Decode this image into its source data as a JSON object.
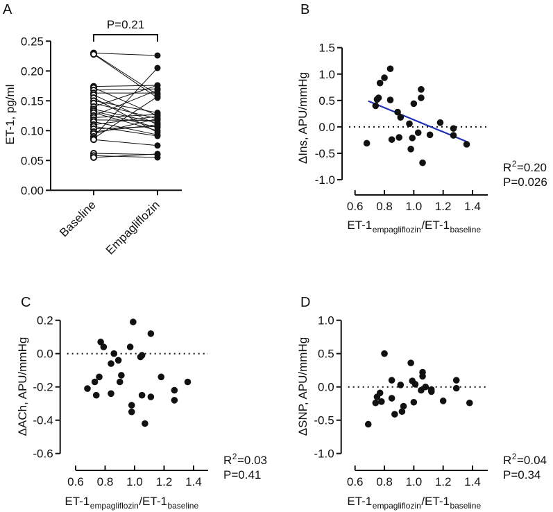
{
  "chart_data": [
    {
      "panel": "A",
      "type": "scatter",
      "subtype": "paired",
      "ylabel": "ET-1, pg/ml",
      "categories": [
        "Baseline",
        "Empagliflozin"
      ],
      "ylim": [
        0,
        0.25
      ],
      "yticks": [
        "0.00",
        "0.05",
        "0.10",
        "0.15",
        "0.20",
        "0.25"
      ],
      "annotation": "P=0.21",
      "pairs": [
        [
          0.23,
          0.226
        ],
        [
          0.229,
          0.16
        ],
        [
          0.228,
          0.155
        ],
        [
          0.174,
          0.176
        ],
        [
          0.172,
          0.125
        ],
        [
          0.168,
          0.17
        ],
        [
          0.163,
          0.163
        ],
        [
          0.16,
          0.11
        ],
        [
          0.155,
          0.097
        ],
        [
          0.15,
          0.13
        ],
        [
          0.146,
          0.12
        ],
        [
          0.14,
          0.176
        ],
        [
          0.136,
          0.113
        ],
        [
          0.133,
          0.105
        ],
        [
          0.13,
          0.1
        ],
        [
          0.125,
          0.168
        ],
        [
          0.122,
          0.127
        ],
        [
          0.118,
          0.117
        ],
        [
          0.115,
          0.093
        ],
        [
          0.11,
          0.124
        ],
        [
          0.107,
          0.091
        ],
        [
          0.103,
          0.107
        ],
        [
          0.098,
          0.11
        ],
        [
          0.095,
          0.12
        ],
        [
          0.09,
          0.205
        ],
        [
          0.087,
          0.157
        ],
        [
          0.085,
          0.075
        ],
        [
          0.062,
          0.06
        ],
        [
          0.058,
          0.055
        ],
        [
          0.055,
          0.061
        ]
      ]
    },
    {
      "panel": "B",
      "type": "scatter",
      "ylabel": "ΔIns, APU/mmHg",
      "xlabel": {
        "a": "ET-1",
        "a_sub": "empagliflozin",
        "b": "/ET-1",
        "b_sub": "baseline"
      },
      "xlim": [
        0.6,
        1.4
      ],
      "xticks": [
        "0.6",
        "0.8",
        "1.0",
        "1.2",
        "1.4"
      ],
      "ylim": [
        -1.0,
        1.5
      ],
      "yticks": [
        "-1.0",
        "-0.5",
        "0.0",
        "0.5",
        "1.0",
        "1.5"
      ],
      "reference_line_y": 0,
      "regression": {
        "x": [
          0.69,
          1.37
        ],
        "y": [
          0.49,
          -0.29
        ],
        "color": "#1f2fb5"
      },
      "stats": {
        "r": "R",
        "sup": "2",
        "r2": "=0.20",
        "p": "P=0.026"
      },
      "points": [
        [
          0.68,
          -0.31
        ],
        [
          0.74,
          0.4
        ],
        [
          0.75,
          0.52
        ],
        [
          0.76,
          0.55
        ],
        [
          0.77,
          0.83
        ],
        [
          0.8,
          0.93
        ],
        [
          0.84,
          1.1
        ],
        [
          0.84,
          0.51
        ],
        [
          0.85,
          -0.24
        ],
        [
          0.89,
          0.28
        ],
        [
          0.9,
          -0.2
        ],
        [
          0.91,
          0.18
        ],
        [
          0.97,
          0.06
        ],
        [
          0.98,
          -0.42
        ],
        [
          0.99,
          -0.21
        ],
        [
          1.0,
          0.44
        ],
        [
          1.03,
          -0.11
        ],
        [
          1.05,
          0.71
        ],
        [
          1.05,
          0.55
        ],
        [
          1.06,
          -0.68
        ],
        [
          1.11,
          -0.15
        ],
        [
          1.18,
          0.08
        ],
        [
          1.27,
          -0.03
        ],
        [
          1.27,
          -0.16
        ],
        [
          1.36,
          -0.33
        ]
      ]
    },
    {
      "panel": "C",
      "type": "scatter",
      "ylabel": "ΔACh, APU/mmHg",
      "xlabel": {
        "a": "ET-1",
        "a_sub": "empagliflozin",
        "b": "/ET-1",
        "b_sub": "baseline"
      },
      "xlim": [
        0.6,
        1.4
      ],
      "xticks": [
        "0.6",
        "0.8",
        "1.0",
        "1.2",
        "1.4"
      ],
      "ylim": [
        -0.6,
        0.2
      ],
      "yticks": [
        "-0.6",
        "-0.4",
        "-0.2",
        "0.0",
        "0.2"
      ],
      "reference_line_y": 0,
      "stats": {
        "r": "R",
        "sup": "2",
        "r2": "=0.03",
        "p": "P=0.41"
      },
      "points": [
        [
          0.68,
          -0.21
        ],
        [
          0.73,
          -0.17
        ],
        [
          0.74,
          -0.25
        ],
        [
          0.76,
          -0.14
        ],
        [
          0.77,
          0.07
        ],
        [
          0.79,
          0.04
        ],
        [
          0.84,
          -0.24
        ],
        [
          0.84,
          -0.06
        ],
        [
          0.86,
          0.0
        ],
        [
          0.89,
          -0.04
        ],
        [
          0.9,
          -0.17
        ],
        [
          0.91,
          -0.13
        ],
        [
          0.97,
          0.04
        ],
        [
          0.98,
          -0.31
        ],
        [
          0.98,
          -0.35
        ],
        [
          0.99,
          0.19
        ],
        [
          1.04,
          -0.02
        ],
        [
          1.05,
          -0.01
        ],
        [
          1.05,
          -0.25
        ],
        [
          1.07,
          -0.42
        ],
        [
          1.11,
          0.12
        ],
        [
          1.11,
          -0.26
        ],
        [
          1.18,
          -0.14
        ],
        [
          1.27,
          -0.22
        ],
        [
          1.27,
          -0.28
        ],
        [
          1.36,
          -0.17
        ]
      ]
    },
    {
      "panel": "D",
      "type": "scatter",
      "ylabel": "ΔSNP, APU/mmHg",
      "xlabel": {
        "a": "ET-1",
        "a_sub": "empagliflozin",
        "b": "/ET-1",
        "b_sub": "baseline"
      },
      "xlim": [
        0.6,
        1.4
      ],
      "xticks": [
        "0.6",
        "0.8",
        "1.0",
        "1.2",
        "1.4"
      ],
      "ylim": [
        -1.0,
        1.0
      ],
      "yticks": [
        "-1.0",
        "-0.5",
        "0.0",
        "0.5",
        "1.0"
      ],
      "reference_line_y": 0,
      "stats": {
        "r": "R",
        "sup": "2",
        "r2": "=0.04",
        "p": "P=0.34"
      },
      "points": [
        [
          0.69,
          -0.56
        ],
        [
          0.74,
          -0.24
        ],
        [
          0.75,
          -0.15
        ],
        [
          0.77,
          -0.09
        ],
        [
          0.78,
          -0.22
        ],
        [
          0.8,
          0.5
        ],
        [
          0.85,
          0.1
        ],
        [
          0.85,
          -0.17
        ],
        [
          0.87,
          -0.41
        ],
        [
          0.91,
          0.03
        ],
        [
          0.92,
          -0.37
        ],
        [
          0.93,
          -0.29
        ],
        [
          0.98,
          0.36
        ],
        [
          0.99,
          0.09
        ],
        [
          1.0,
          -0.23
        ],
        [
          1.01,
          0.04
        ],
        [
          1.05,
          -0.05
        ],
        [
          1.06,
          0.22
        ],
        [
          1.06,
          0.16
        ],
        [
          1.08,
          0.0
        ],
        [
          1.12,
          -0.04
        ],
        [
          1.12,
          -0.07
        ],
        [
          1.2,
          -0.21
        ],
        [
          1.29,
          0.1
        ],
        [
          1.29,
          -0.02
        ],
        [
          1.38,
          -0.24
        ]
      ]
    }
  ]
}
